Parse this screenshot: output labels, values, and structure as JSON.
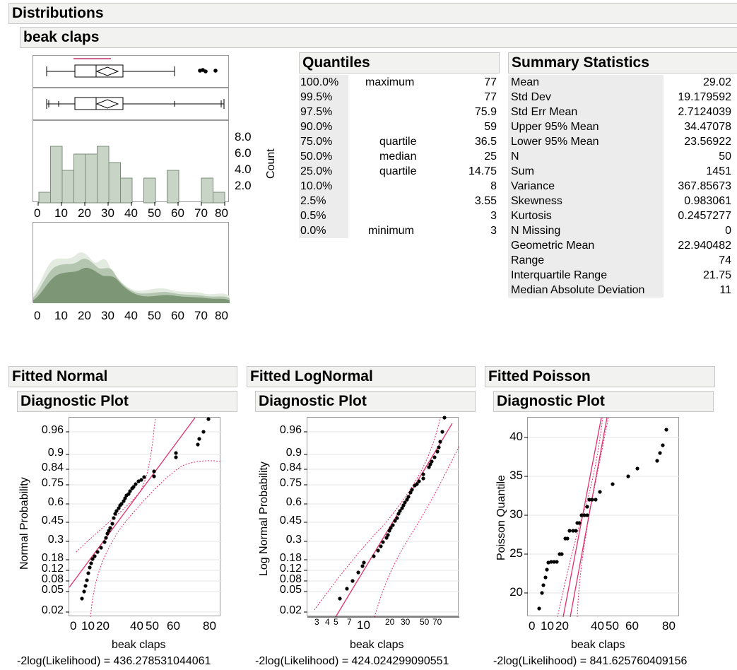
{
  "report": {
    "title": "Distributions",
    "variable": "beak claps"
  },
  "histogram": {
    "count_label": "Count",
    "count_ticks": [
      "8.0",
      "6.0",
      "4.0",
      "2.0"
    ],
    "x_ticks": [
      "0",
      "10",
      "20",
      "30",
      "40",
      "50",
      "60",
      "70",
      "80"
    ]
  },
  "density": {
    "x_ticks": [
      "0",
      "10",
      "20",
      "30",
      "40",
      "50",
      "60",
      "70",
      "80"
    ]
  },
  "quantiles": {
    "title": "Quantiles",
    "rows": [
      {
        "pct": "100.0%",
        "label": "maximum",
        "value": "77"
      },
      {
        "pct": "99.5%",
        "label": "",
        "value": "77"
      },
      {
        "pct": "97.5%",
        "label": "",
        "value": "75.9"
      },
      {
        "pct": "90.0%",
        "label": "",
        "value": "59"
      },
      {
        "pct": "75.0%",
        "label": "quartile",
        "value": "36.5"
      },
      {
        "pct": "50.0%",
        "label": "median",
        "value": "25"
      },
      {
        "pct": "25.0%",
        "label": "quartile",
        "value": "14.75"
      },
      {
        "pct": "10.0%",
        "label": "",
        "value": "8"
      },
      {
        "pct": "2.5%",
        "label": "",
        "value": "3.55"
      },
      {
        "pct": "0.5%",
        "label": "",
        "value": "3"
      },
      {
        "pct": "0.0%",
        "label": "minimum",
        "value": "3"
      }
    ]
  },
  "summary": {
    "title": "Summary Statistics",
    "rows": [
      {
        "label": "Mean",
        "value": "29.02"
      },
      {
        "label": "Std Dev",
        "value": "19.179592"
      },
      {
        "label": "Std Err Mean",
        "value": "2.7124039"
      },
      {
        "label": "Upper 95% Mean",
        "value": "34.47078"
      },
      {
        "label": "Lower 95% Mean",
        "value": "23.56922"
      },
      {
        "label": "N",
        "value": "50"
      },
      {
        "label": "Sum",
        "value": "1451"
      },
      {
        "label": "Variance",
        "value": "367.85673"
      },
      {
        "label": "Skewness",
        "value": "0.983061"
      },
      {
        "label": "Kurtosis",
        "value": "0.2457277"
      },
      {
        "label": "N Missing",
        "value": "0"
      },
      {
        "label": "Geometric Mean",
        "value": "22.940482"
      },
      {
        "label": "Range",
        "value": "74"
      },
      {
        "label": "Interquartile Range",
        "value": "21.75"
      },
      {
        "label": "Median Absolute Deviation",
        "value": "11"
      }
    ]
  },
  "fits": {
    "normal": {
      "title": "Fitted Normal",
      "sub": "Diagnostic Plot",
      "ylabel": "Normal Probability",
      "y_ticks": [
        "0.96",
        "0.9",
        "0.84",
        "0.75",
        "0.6",
        "0.45",
        "0.3",
        "0.18",
        "0.12",
        "0.08",
        "0.05",
        "0.02"
      ],
      "x_ticks": [
        "0",
        "10",
        "20",
        "40",
        "50",
        "60",
        "80"
      ],
      "xlabel": "beak claps",
      "likelihood": "-2log(Likelihood) = 436.278531044061"
    },
    "lognormal": {
      "title": "Fitted LogNormal",
      "sub": "Diagnostic Plot",
      "ylabel": "Log Normal Probability",
      "y_ticks": [
        "0.96",
        "0.9",
        "0.84",
        "0.75",
        "0.6",
        "0.45",
        "0.3",
        "0.18",
        "0.12",
        "0.08",
        "0.05",
        "0.02"
      ],
      "x_ticks_small": [
        "3",
        "4",
        "5",
        "7",
        "20",
        "30",
        "50",
        "70"
      ],
      "x_tick_big": "10",
      "xlabel": "beak claps",
      "likelihood": "-2log(Likelihood) = 424.024299090551"
    },
    "poisson": {
      "title": "Fitted Poisson",
      "sub": "Diagnostic Plot",
      "ylabel": "Poisson Quantile",
      "y_ticks": [
        "40",
        "35",
        "30",
        "25",
        "20"
      ],
      "x_ticks": [
        "0",
        "10",
        "20",
        "40",
        "50",
        "60",
        "80"
      ],
      "xlabel": "beak claps",
      "likelihood": "-2log(Likelihood) = 841.625760409156"
    }
  },
  "colors": {
    "bar_fill": "#c8d5c6",
    "bar_stroke": "#7b8c79",
    "density": "#7d9676",
    "fit_line": "#e0306a"
  }
}
